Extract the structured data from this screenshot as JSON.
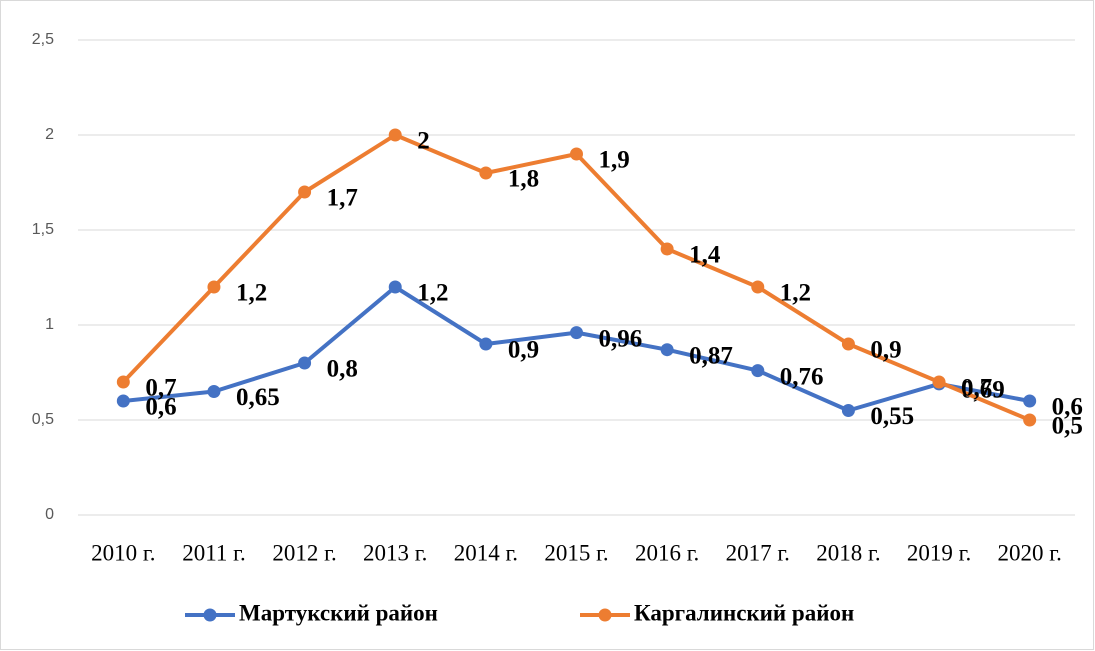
{
  "chart_data": {
    "type": "line",
    "categories": [
      "2010 г.",
      "2011 г.",
      "2012 г.",
      "2013 г.",
      "2014 г.",
      "2015 г.",
      "2016 г.",
      "2017 г.",
      "2018 г.",
      "2019 г.",
      "2020 г."
    ],
    "series": [
      {
        "name": "Мартукский район",
        "color": "#4472c4",
        "values": [
          0.6,
          0.65,
          0.8,
          1.2,
          0.9,
          0.96,
          0.87,
          0.76,
          0.55,
          0.69,
          0.6
        ],
        "value_labels": [
          "0,6",
          "0,65",
          "0,8",
          "1,2",
          "0,9",
          "0,96",
          "0,87",
          "0,76",
          "0,55",
          "0,69",
          "0,6"
        ]
      },
      {
        "name": "Каргалинский район",
        "color": "#ed7d31",
        "values": [
          0.7,
          1.2,
          1.7,
          2,
          1.8,
          1.9,
          1.4,
          1.2,
          0.9,
          0.7,
          0.5
        ],
        "value_labels": [
          "0,7",
          "1,2",
          "1,7",
          "2",
          "1,8",
          "1,9",
          "1,4",
          "1,2",
          "0,9",
          "0,7",
          "0,5"
        ]
      }
    ],
    "ylim": [
      0,
      2.5
    ],
    "yticks": [
      0,
      {
        "value": 0.5,
        "label": "0,5"
      },
      1,
      {
        "value": 1.5,
        "label": "1,5"
      },
      2,
      {
        "value": 2.5,
        "label": "2,5"
      }
    ],
    "grid": true,
    "legend": "bottom"
  }
}
